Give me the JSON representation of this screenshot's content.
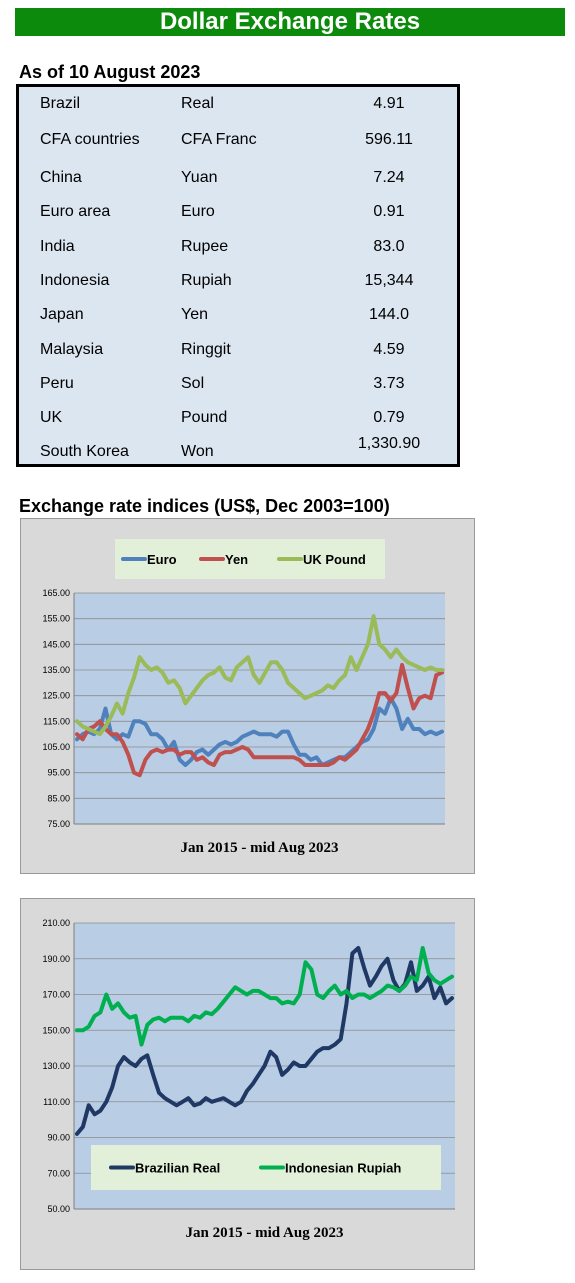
{
  "header": {
    "title": "Dollar Exchange Rates"
  },
  "rates": {
    "as_of": "As of 10 August 2023",
    "rows": [
      {
        "country": "Brazil",
        "currency": "Real",
        "value": "4.91"
      },
      {
        "country": "CFA countries",
        "currency": "CFA Franc",
        "value": "596.11"
      },
      {
        "country": "China",
        "currency": "Yuan",
        "value": "7.24"
      },
      {
        "country": "Euro area",
        "currency": "Euro",
        "value": "0.91"
      },
      {
        "country": "India",
        "currency": "Rupee",
        "value": "83.0"
      },
      {
        "country": "Indonesia",
        "currency": "Rupiah",
        "value": "15,344"
      },
      {
        "country": "Japan",
        "currency": "Yen",
        "value": "144.0"
      },
      {
        "country": "Malaysia",
        "currency": "Ringgit",
        "value": "4.59"
      },
      {
        "country": "Peru",
        "currency": "Sol",
        "value": "3.73"
      },
      {
        "country": "UK",
        "currency": "Pound",
        "value": "0.79"
      },
      {
        "country": "South Korea",
        "currency": "Won",
        "value": "1,330.90"
      }
    ]
  },
  "indices_title": "Exchange rate indices (US$, Dec 2003=100)",
  "chart_data": [
    {
      "type": "line",
      "xlabel": "Jan 2015 - mid Aug 2023",
      "ylabel": "",
      "ylim": [
        75,
        165
      ],
      "yticks": [
        "75.00",
        "85.00",
        "95.00",
        "105.00",
        "115.00",
        "125.00",
        "135.00",
        "145.00",
        "155.00",
        "165.00"
      ],
      "legend_position": "top",
      "grid": true,
      "series": [
        {
          "name": "Euro",
          "color": "#4f81bd",
          "values": [
            108,
            110,
            111,
            110,
            112,
            120,
            110,
            108,
            110,
            109,
            115,
            115,
            114,
            110,
            110,
            108,
            104,
            107,
            100,
            98,
            100,
            103,
            104,
            102,
            104,
            106,
            107,
            106,
            107,
            109,
            110,
            111,
            110,
            110,
            110,
            109,
            111,
            111,
            106,
            102,
            102,
            100,
            101,
            98,
            99,
            100,
            101,
            101,
            103,
            105,
            107,
            108,
            112,
            120,
            118,
            124,
            120,
            112,
            116,
            112,
            112,
            110,
            111,
            110,
            111
          ]
        },
        {
          "name": "Yen",
          "color": "#c0504d",
          "values": [
            110,
            108,
            112,
            113,
            115,
            112,
            110,
            110,
            107,
            102,
            95,
            94,
            100,
            103,
            104,
            103,
            104,
            104,
            102,
            103,
            103,
            100,
            101,
            99,
            98,
            102,
            103,
            103,
            104,
            105,
            104,
            101,
            101,
            101,
            101,
            101,
            101,
            101,
            101,
            100,
            98,
            98,
            98,
            98,
            98,
            99,
            101,
            100,
            102,
            104,
            108,
            112,
            118,
            126,
            126,
            123,
            126,
            137,
            128,
            120,
            124,
            125,
            124,
            133,
            134
          ]
        },
        {
          "name": "UK Pound",
          "color": "#9bbb59",
          "values": [
            115,
            113,
            112,
            111,
            110,
            113,
            117,
            122,
            118,
            126,
            132,
            140,
            137,
            135,
            136,
            134,
            130,
            131,
            128,
            122,
            125,
            128,
            131,
            133,
            134,
            136,
            132,
            131,
            136,
            138,
            140,
            133,
            130,
            134,
            138,
            138,
            135,
            130,
            128,
            126,
            124,
            125,
            126,
            127,
            129,
            128,
            131,
            133,
            140,
            135,
            140,
            145,
            156,
            145,
            143,
            140,
            143,
            140,
            138,
            137,
            136,
            135,
            136,
            135,
            135
          ]
        }
      ]
    },
    {
      "type": "line",
      "xlabel": "Jan 2015 - mid Aug 2023",
      "ylabel": "",
      "ylim": [
        50,
        210
      ],
      "yticks": [
        "50.00",
        "70.00",
        "90.00",
        "110.00",
        "130.00",
        "150.00",
        "170.00",
        "190.00",
        "210.00"
      ],
      "legend_position": "bottom",
      "grid": true,
      "series": [
        {
          "name": "Brazilian Real",
          "color": "#1f3864",
          "values": [
            92,
            96,
            108,
            103,
            105,
            110,
            118,
            130,
            135,
            132,
            130,
            134,
            136,
            125,
            115,
            112,
            110,
            108,
            110,
            112,
            108,
            109,
            112,
            110,
            111,
            112,
            110,
            108,
            110,
            116,
            120,
            125,
            130,
            138,
            135,
            125,
            128,
            132,
            130,
            130,
            134,
            138,
            140,
            140,
            142,
            145,
            165,
            193,
            196,
            185,
            175,
            180,
            186,
            190,
            178,
            172,
            176,
            188,
            172,
            175,
            180,
            168,
            174,
            165,
            168
          ]
        },
        {
          "name": "Indonesian Rupiah",
          "color": "#00b050",
          "values": [
            150,
            150,
            152,
            158,
            160,
            170,
            162,
            165,
            160,
            157,
            158,
            142,
            153,
            156,
            157,
            155,
            157,
            157,
            157,
            155,
            158,
            157,
            160,
            159,
            162,
            166,
            170,
            174,
            172,
            170,
            172,
            172,
            170,
            168,
            168,
            165,
            166,
            165,
            170,
            188,
            184,
            170,
            168,
            172,
            175,
            170,
            172,
            168,
            170,
            170,
            168,
            170,
            172,
            175,
            174,
            172,
            175,
            180,
            178,
            196,
            182,
            178,
            176,
            178,
            180
          ]
        }
      ]
    }
  ]
}
